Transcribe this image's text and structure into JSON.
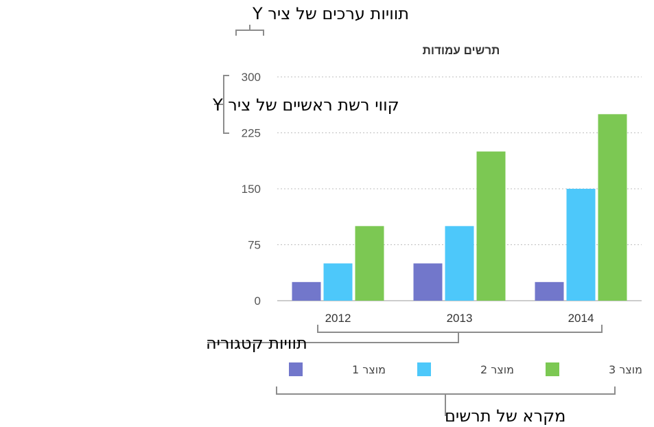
{
  "chart_data": {
    "type": "bar",
    "title": "תרשים עמודות",
    "categories": [
      "2012",
      "2013",
      "2014"
    ],
    "series": [
      {
        "name": "מוצר 1",
        "values": [
          25,
          50,
          25
        ],
        "color": "#7277cb"
      },
      {
        "name": "מוצר 2",
        "values": [
          50,
          100,
          150
        ],
        "color": "#4dc8fa"
      },
      {
        "name": "מוצר 3",
        "values": [
          100,
          200,
          250
        ],
        "color": "#7cc853"
      }
    ],
    "ylim": [
      0,
      300
    ],
    "yticks": [
      "0",
      "75",
      "150",
      "225",
      "300"
    ],
    "grid": true,
    "legend_position": "bottom"
  },
  "annotations": {
    "y_value_labels": "תוויות ערכים של ציר Y",
    "y_major_gridlines": "קווי רשת ראשיים של ציר Y",
    "category_labels": "תוויות קטגוריה",
    "chart_legend": "מקרא של תרשים"
  }
}
